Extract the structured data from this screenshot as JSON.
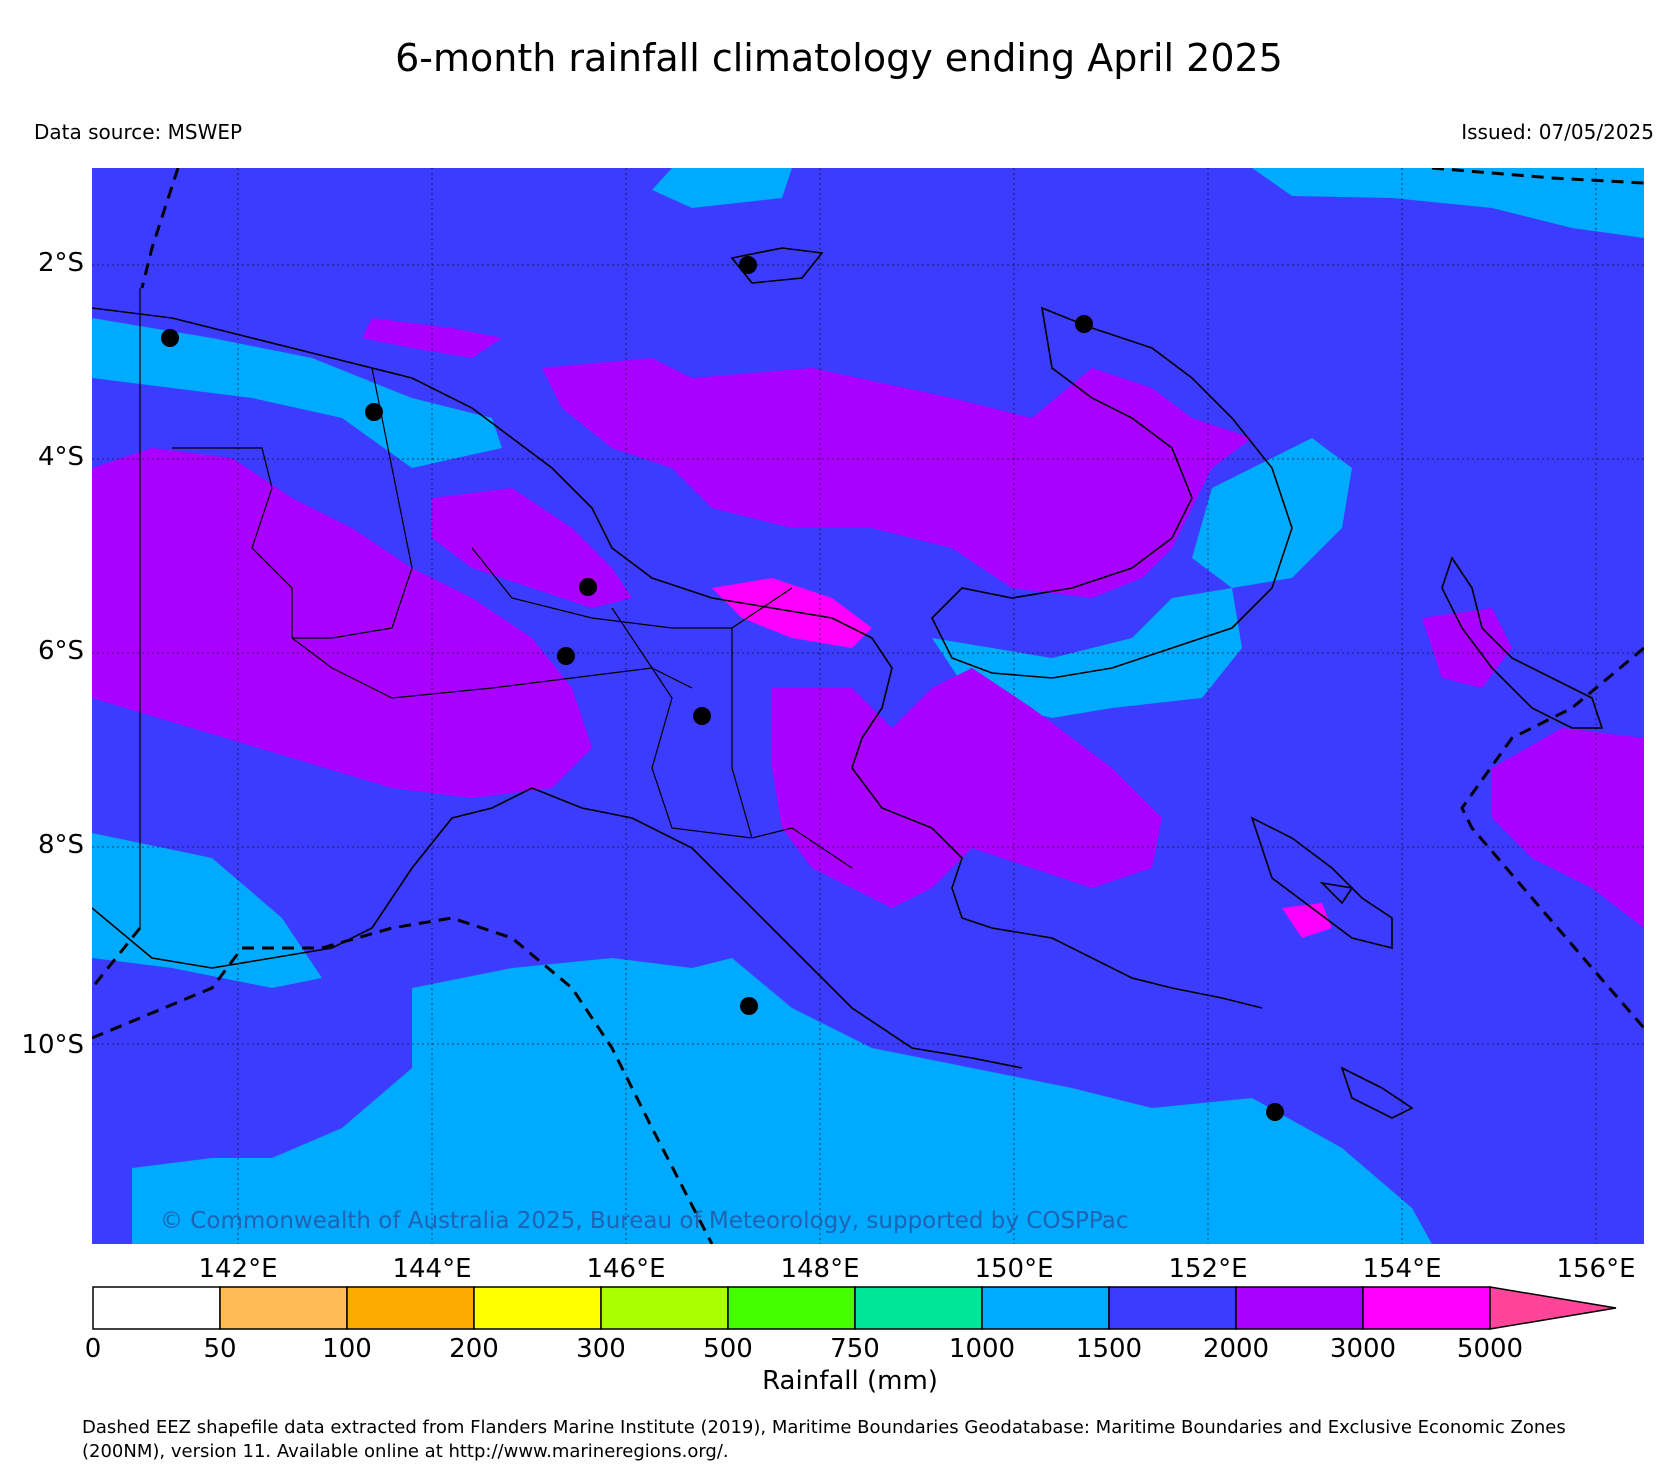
{
  "title": "6-month rainfall climatology ending April 2025",
  "data_source": "Data source: MSWEP",
  "issued": "Issued: 07/05/2025",
  "watermark": "© Commonwealth of Australia 2025, Bureau of Meteorology, supported by COSPPac",
  "lat_labels": [
    "2°S",
    "4°S",
    "6°S",
    "8°S",
    "10°S"
  ],
  "lon_labels": [
    "142°E",
    "144°E",
    "146°E",
    "148°E",
    "150°E",
    "152°E",
    "154°E",
    "156°E"
  ],
  "colorbar": {
    "title": "Rainfall (mm)",
    "ticks": [
      "0",
      "50",
      "100",
      "200",
      "300",
      "500",
      "750",
      "1000",
      "1500",
      "2000",
      "3000",
      "5000"
    ],
    "colors": [
      "#ffffff",
      "#ffbb55",
      "#ffaa00",
      "#ffff00",
      "#aaff00",
      "#44ff00",
      "#00e699",
      "#00aaff",
      "#3c3cff",
      "#aa00ff",
      "#ff00ff",
      "#ff4499"
    ]
  },
  "footer": {
    "line1": "Dashed EEZ shapefile data extracted from Flanders Marine Institute (2019), Maritime Boundaries Geodatabase: Maritime Boundaries and Exclusive Economic Zones",
    "line2": "(200NM), version 11. Available online at http://www.marineregions.org/."
  }
}
